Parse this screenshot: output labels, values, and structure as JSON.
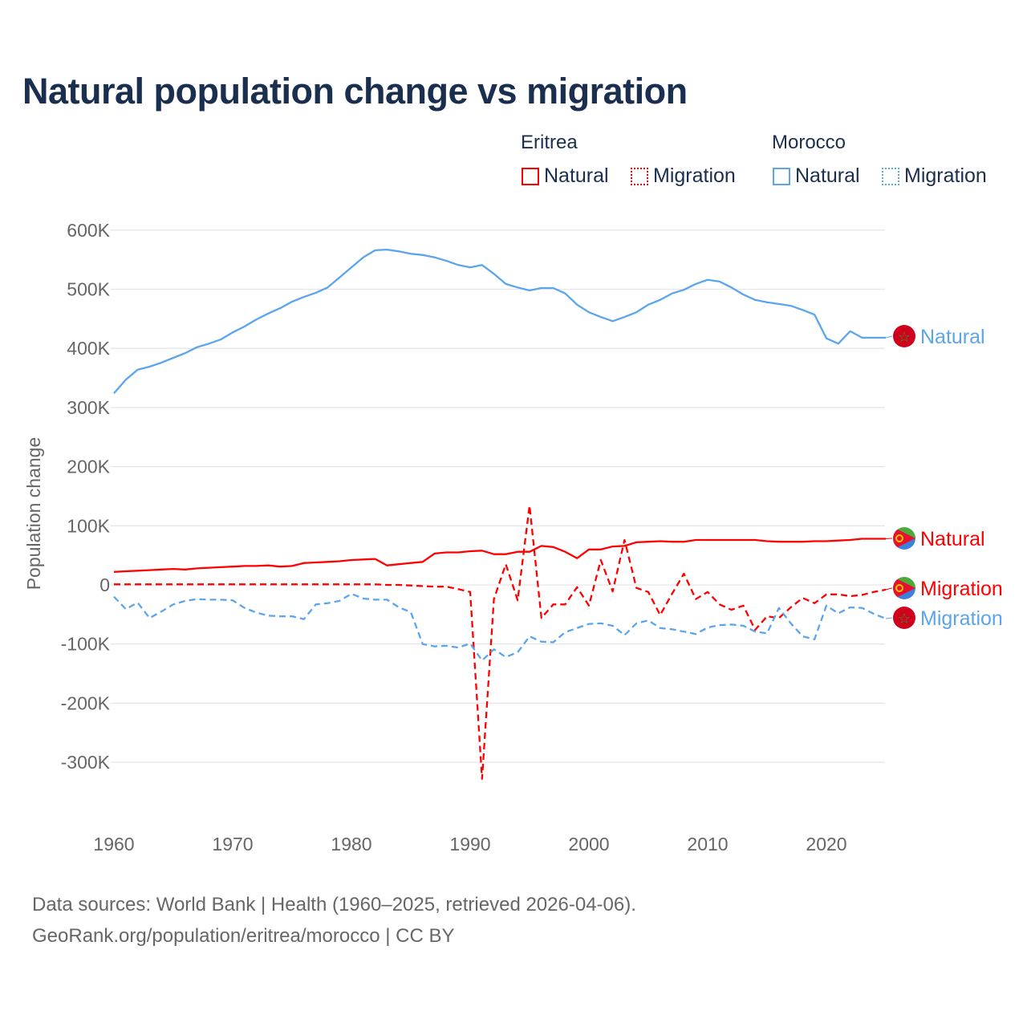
{
  "title": "Natural population change vs migration",
  "legend": {
    "groups": [
      {
        "name": "Eritrea",
        "color": "#ff0000",
        "items": [
          "Natural",
          "Migration"
        ]
      },
      {
        "name": "Morocco",
        "color": "#5ba4ee",
        "items": [
          "Natural",
          "Migration"
        ]
      }
    ]
  },
  "end_labels": [
    {
      "text": "Natural",
      "country": "Morocco",
      "flag": "morocco-flag",
      "color": "#5ba4ee"
    },
    {
      "text": "Natural",
      "country": "Eritrea",
      "flag": "eritrea-flag",
      "color": "#ff0000"
    },
    {
      "text": "Migration",
      "country": "Eritrea",
      "flag": "eritrea-flag",
      "color": "#ff0000"
    },
    {
      "text": "Migration",
      "country": "Morocco",
      "flag": "morocco-flag",
      "color": "#5ba4ee"
    }
  ],
  "footer": {
    "line1": "Data sources: World Bank | Health (1960–2025, retrieved 2026-04-06).",
    "line2": "GeoRank.org/population/eritrea/morocco | CC BY"
  },
  "chart_data": {
    "type": "line",
    "title": "Natural population change vs migration",
    "xlabel": "",
    "ylabel": "Population change",
    "xlim": [
      1960,
      2025
    ],
    "ylim": [
      -400000,
      600000
    ],
    "x_ticks": [
      1960,
      1970,
      1980,
      1990,
      2000,
      2010,
      2020
    ],
    "x_tick_labels": [
      "1960",
      "1970",
      "1980",
      "1990",
      "2000",
      "2010",
      "2020"
    ],
    "y_ticks": [
      600000,
      500000,
      400000,
      300000,
      200000,
      100000,
      0,
      -100000,
      -200000,
      -300000
    ],
    "y_tick_labels": [
      "600K",
      "500K",
      "400K",
      "300K",
      "200K",
      "100K",
      "0",
      "-100K",
      "-200K",
      "-300K"
    ],
    "grid": true,
    "legend_position": "top-right",
    "x_start": 1960,
    "series": [
      {
        "name": "Morocco Natural",
        "color": "#5ba4ee",
        "dash": "solid",
        "values_k": [
          324,
          347,
          364,
          369,
          376,
          384,
          392,
          402,
          408,
          415,
          427,
          437,
          449,
          459,
          468,
          479,
          487,
          494,
          503,
          520,
          537,
          554,
          566,
          567,
          564,
          560,
          558,
          554,
          548,
          541,
          537,
          541,
          526,
          509,
          503,
          498,
          502,
          502,
          493,
          474,
          461,
          453,
          446,
          453,
          461,
          474,
          482,
          493,
          499,
          509,
          516,
          513,
          503,
          491,
          482,
          478,
          475,
          472,
          465,
          457,
          417,
          408,
          429,
          418,
          418,
          418
        ]
      },
      {
        "name": "Eritrea Natural",
        "color": "#ff0000",
        "dash": "solid",
        "values_k": [
          22,
          23,
          24,
          25,
          26,
          27,
          26,
          28,
          29,
          30,
          31,
          32,
          32,
          33,
          31,
          32,
          37,
          38,
          39,
          40,
          42,
          43,
          44,
          33,
          35,
          37,
          39,
          53,
          55,
          55,
          57,
          58,
          52,
          52,
          56,
          56,
          66,
          64,
          56,
          45,
          60,
          60,
          65,
          66,
          72,
          73,
          74,
          73,
          73,
          76,
          76,
          76,
          76,
          76,
          76,
          74,
          73,
          73,
          73,
          74,
          74,
          75,
          76,
          78,
          78,
          78
        ]
      },
      {
        "name": "Eritrea Migration",
        "color": "#ff0000",
        "dash": "dashed",
        "values_k": [
          1,
          1,
          1,
          1,
          1,
          1,
          1,
          1,
          1,
          1,
          1,
          1,
          1,
          1,
          1,
          1,
          1,
          1,
          1,
          1,
          1,
          1,
          1,
          0,
          0,
          -1,
          -2,
          -3,
          -3,
          -7,
          -12,
          -328,
          -24,
          35,
          -26,
          134,
          -56,
          -33,
          -33,
          -4,
          -35,
          42,
          -11,
          76,
          -5,
          -12,
          -51,
          -15,
          19,
          -24,
          -12,
          -33,
          -42,
          -35,
          -76,
          -53,
          -56,
          -38,
          -22,
          -31,
          -16,
          -16,
          -19,
          -17,
          -12,
          -8
        ]
      },
      {
        "name": "Morocco Migration",
        "color": "#5ba4ee",
        "dash": "dashed",
        "values_k": [
          -20,
          -41,
          -30,
          -56,
          -45,
          -33,
          -27,
          -24,
          -25,
          -25,
          -26,
          -39,
          -47,
          -52,
          -53,
          -53,
          -58,
          -33,
          -31,
          -27,
          -15,
          -23,
          -25,
          -25,
          -38,
          -46,
          -100,
          -104,
          -103,
          -106,
          -99,
          -128,
          -109,
          -122,
          -114,
          -87,
          -96,
          -97,
          -80,
          -73,
          -66,
          -65,
          -69,
          -85,
          -65,
          -60,
          -73,
          -75,
          -79,
          -83,
          -72,
          -68,
          -67,
          -69,
          -79,
          -82,
          -39,
          -65,
          -87,
          -92,
          -35,
          -48,
          -38,
          -39,
          -49,
          -57
        ]
      }
    ]
  }
}
